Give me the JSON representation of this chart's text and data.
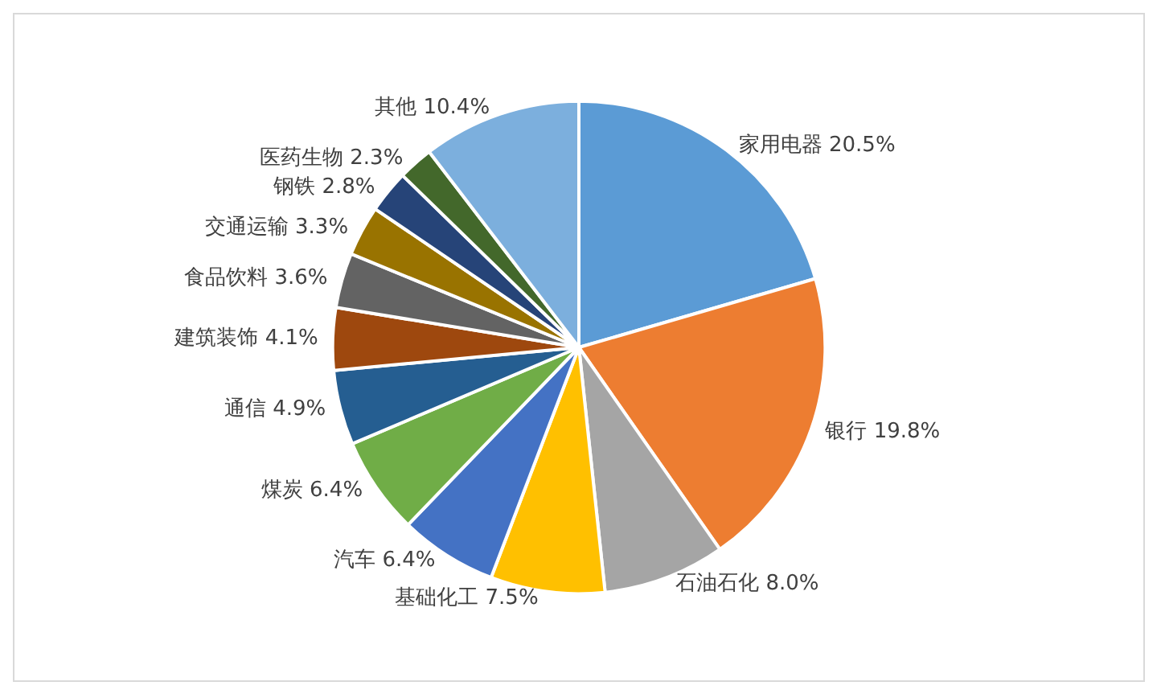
{
  "chart_data": {
    "type": "pie",
    "categories": [
      "家用电器",
      "银行",
      "石油石化",
      "基础化工",
      "汽车",
      "煤炭",
      "通信",
      "建筑装饰",
      "食品饮料",
      "交通运输",
      "钢铁",
      "医药生物",
      "其他"
    ],
    "values": [
      20.5,
      19.8,
      8.0,
      7.5,
      6.4,
      6.4,
      4.9,
      4.1,
      3.6,
      3.3,
      2.8,
      2.3,
      10.4
    ],
    "value_labels": [
      "20.5%",
      "19.8%",
      "8.0%",
      "7.5%",
      "6.4%",
      "6.4%",
      "4.9%",
      "4.1%",
      "3.6%",
      "3.3%",
      "2.8%",
      "2.3%",
      "10.4%"
    ],
    "colors": [
      "#5b9bd5",
      "#ed7d31",
      "#a5a5a5",
      "#ffc000",
      "#4472c4",
      "#70ad47",
      "#255e91",
      "#9e480e",
      "#636363",
      "#997300",
      "#264478",
      "#43682b",
      "#7cafdd"
    ],
    "legend": false
  }
}
